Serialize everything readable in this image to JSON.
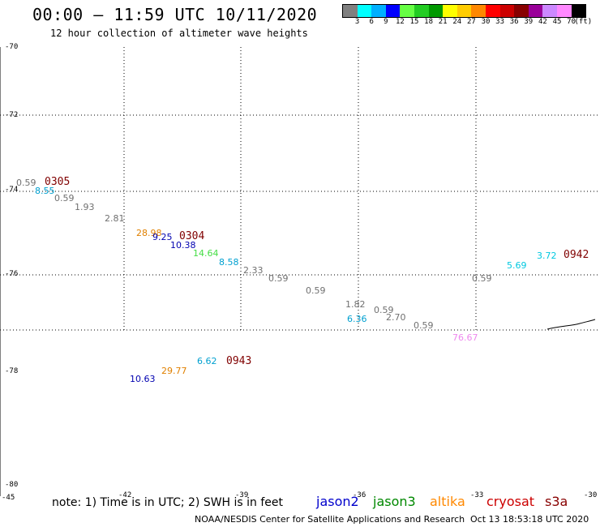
{
  "header": {
    "title": "00:00 – 11:59 UTC 10/11/2020",
    "subtitle": "12 hour collection of altimeter wave heights"
  },
  "colorbar": {
    "colors": [
      "#808080",
      "#00ffff",
      "#00b0ff",
      "#0000ff",
      "#66ff44",
      "#22cc22",
      "#009900",
      "#ffff00",
      "#ffcc00",
      "#ff8800",
      "#ff0000",
      "#cc0000",
      "#880000",
      "#990099",
      "#cc88ff",
      "#ff88ff",
      "#000000"
    ],
    "labels": [
      "3",
      "6",
      "9",
      "12",
      "15",
      "18",
      "21",
      "24",
      "27",
      "30",
      "33",
      "36",
      "39",
      "42",
      "45",
      "70",
      "(ft)"
    ]
  },
  "axes": {
    "lat_labels": [
      "-70",
      "-72",
      "-74",
      "-76",
      "-78",
      "-80"
    ],
    "lon_labels": [
      "-45",
      "-42",
      "-39",
      "-36",
      "-33",
      "-30"
    ]
  },
  "observations": [
    {
      "text": "0.59",
      "color": "#707070"
    },
    {
      "text": "8.55",
      "color": "#00a0d0"
    },
    {
      "text": "0.59",
      "color": "#707070"
    },
    {
      "text": "1.93",
      "color": "#707070"
    },
    {
      "text": "2.81",
      "color": "#707070"
    },
    {
      "text": "28.98",
      "color": "#e08000"
    },
    {
      "text": "9.25",
      "color": "#0000b0"
    },
    {
      "text": "10.38",
      "color": "#0000b0"
    },
    {
      "text": "14.64",
      "color": "#44dd44"
    },
    {
      "text": "8.58",
      "color": "#00a0d0"
    },
    {
      "text": "2.33",
      "color": "#707070"
    },
    {
      "text": "0.59",
      "color": "#707070"
    },
    {
      "text": "0.59",
      "color": "#707070"
    },
    {
      "text": "1.82",
      "color": "#707070"
    },
    {
      "text": "6.36",
      "color": "#00a0d0"
    },
    {
      "text": "0.59",
      "color": "#707070"
    },
    {
      "text": "2.70",
      "color": "#707070"
    },
    {
      "text": "0.59",
      "color": "#707070"
    },
    {
      "text": "76.67",
      "color": "#ee88ee"
    },
    {
      "text": "0.59",
      "color": "#707070"
    },
    {
      "text": "5.69",
      "color": "#00c8e0"
    },
    {
      "text": "3.72",
      "color": "#00c8e0"
    },
    {
      "text": "10.63",
      "color": "#0000b0"
    },
    {
      "text": "29.77",
      "color": "#e08000"
    },
    {
      "text": "6.62",
      "color": "#00a0d0"
    }
  ],
  "pass_times": [
    "0305",
    "0304",
    "0942",
    "0943"
  ],
  "footer": {
    "note": "note: 1) Time is in UTC; 2) SWH is in feet",
    "satellites": [
      {
        "name": "jason2",
        "color": "#0000cc"
      },
      {
        "name": "jason3",
        "color": "#008800"
      },
      {
        "name": "altika",
        "color": "#ff8800"
      },
      {
        "name": "cryosat",
        "color": "#cc0000"
      },
      {
        "name": "s3a",
        "color": "#880000"
      }
    ],
    "credit": "NOAA/NESDIS Center for Satellite Applications and Research",
    "generated": "Oct 13 18:53:18 UTC 2020"
  }
}
